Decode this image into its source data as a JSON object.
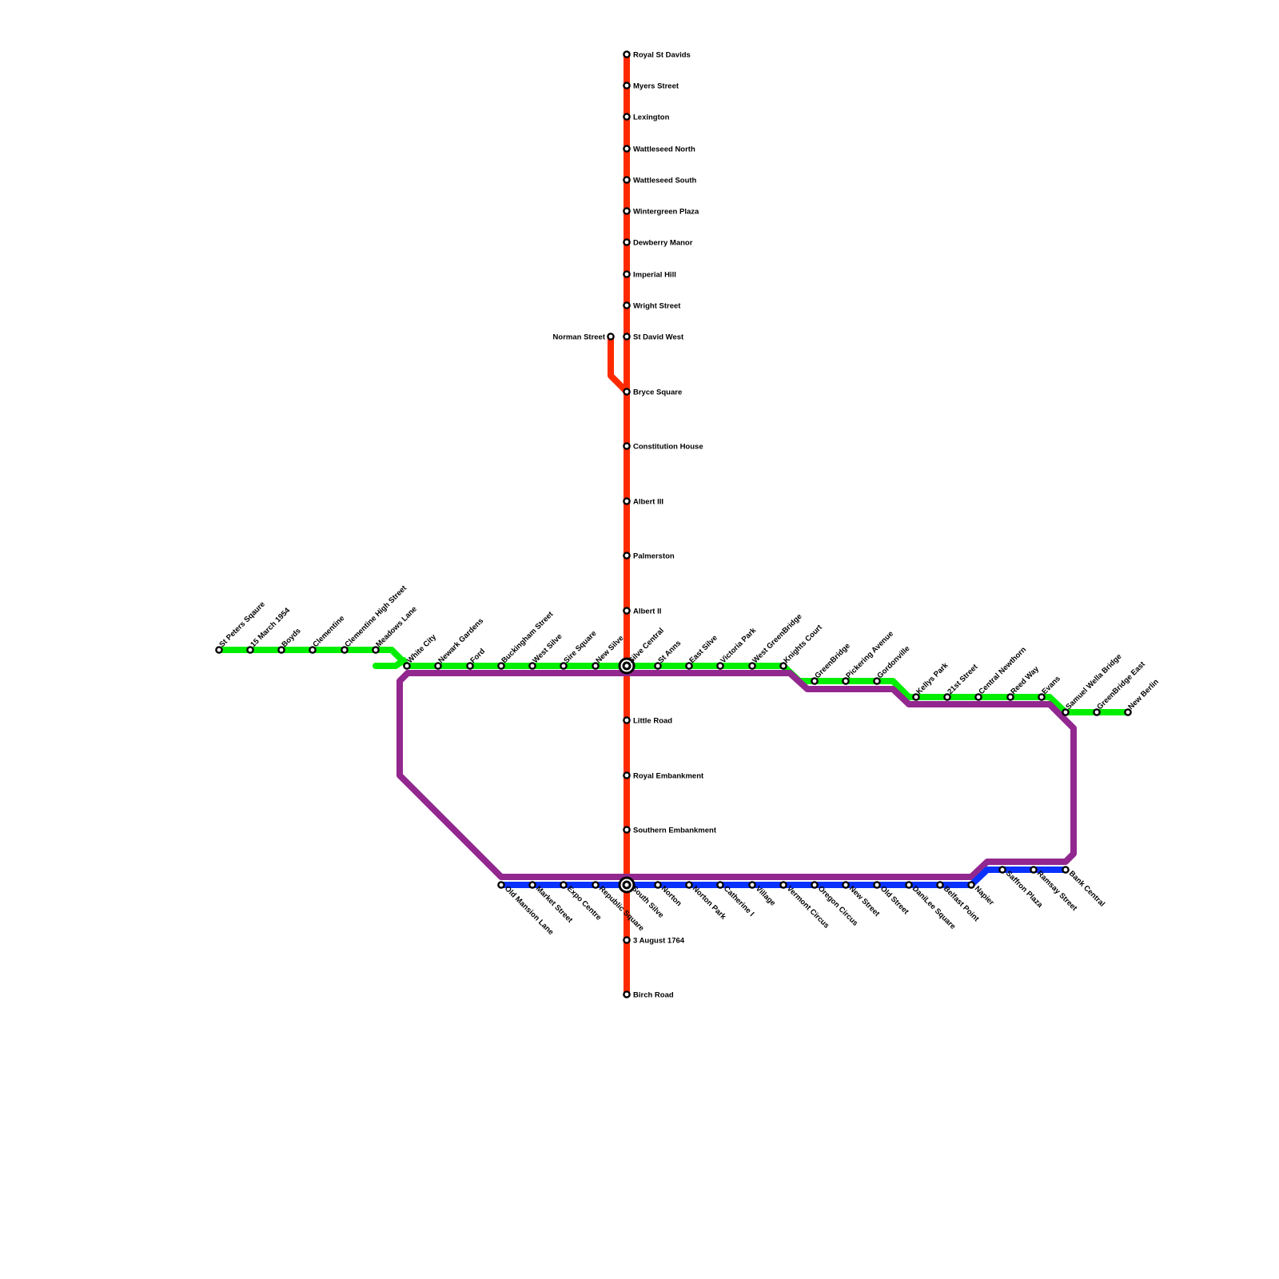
{
  "colors": {
    "red": "#ff2a00",
    "green": "#00ee00",
    "purple": "#92278f",
    "blue": "#0a32ff"
  },
  "lines": {
    "red": {
      "stations": [
        "Royal St Davids",
        "Myers Street",
        "Lexington",
        "Wattleseed North",
        "Wattleseed South",
        "Wintergreen Plaza",
        "Dewberry Manor",
        "Imperial Hill",
        "Wright Street",
        "St David West",
        "Bryce Square",
        "Constitution House",
        "Albert III",
        "Palmerston",
        "Albert II",
        "Little Road",
        "Royal Embankment",
        "Southern Embankment",
        "3 August 1764",
        "Birch Road"
      ],
      "branch": [
        "Norman Street"
      ]
    },
    "green": {
      "stations": [
        "St Peters Sqaure",
        "15 March 1954",
        "Boyds",
        "Clementine",
        "Clementine High Street",
        "Meadows Lane",
        "White City",
        "Newark Gardens",
        "Ford",
        "Buckingham Street",
        "West Silve",
        "Sire Square",
        "New Silve",
        "Silve Central",
        "St Anns",
        "East Silve",
        "Victoria Park",
        "West GreenBridge",
        "Knights Court",
        "GreenBridge",
        "Pickering Avenue",
        "Gordonville",
        "Kellys Park",
        "21st Street",
        "Central Newthorn",
        "Reed Way",
        "Evans",
        "Samuel Wella Bridge",
        "GreenBridge East",
        "New Berlin"
      ]
    },
    "blue": {
      "stations": [
        "Old Mansion Lane",
        "Market Street",
        "Expo Centre",
        "Republic Square",
        "South Silve",
        "Norton",
        "Norton Park",
        "Catherine I",
        "Village",
        "Vermont Circus",
        "Oregon Circus",
        "New Street",
        "Old Street",
        "DaniLee Square",
        "Belfast Point",
        "Napier",
        "Saffron Plaza",
        "Ramsay Street",
        "Bank Central"
      ]
    }
  },
  "interchanges": [
    "Silve Central",
    "South Silve"
  ]
}
